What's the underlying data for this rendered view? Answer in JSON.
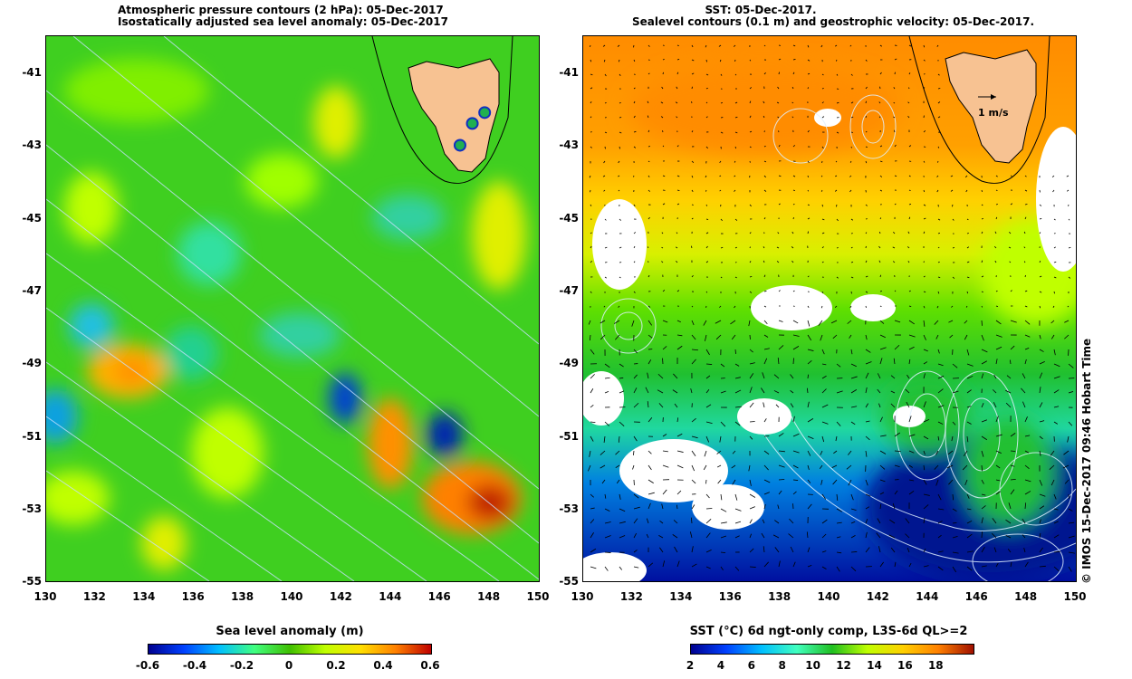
{
  "left_panel": {
    "title_line1": "Atmospheric pressure contours (2 hPa): 05-Dec-2017",
    "title_line2": "Isostatically adjusted sea level anomaly: 05-Dec-2017",
    "colorbar_title": "Sea level anomaly (m)",
    "colorbar_ticks": [
      "-0.6",
      "-0.4",
      "-0.2",
      "0",
      "0.2",
      "0.4",
      "0.6"
    ]
  },
  "right_panel": {
    "title_line1": "SST: 05-Dec-2017.",
    "title_line2": "Sealevel contours (0.1 m) and geostrophic velocity: 05-Dec-2017.",
    "arrow_label": "1 m/s",
    "colorbar_title": "SST (°C) 6d ngt-only comp, L3S-6d QL>=2",
    "colorbar_ticks": [
      "2",
      "4",
      "6",
      "8",
      "10",
      "12",
      "14",
      "16",
      "18"
    ]
  },
  "y_ticks": [
    "-41",
    "-43",
    "-45",
    "-47",
    "-49",
    "-51",
    "-53",
    "-55"
  ],
  "x_ticks": [
    "130",
    "132",
    "134",
    "136",
    "138",
    "140",
    "142",
    "144",
    "146",
    "148",
    "150"
  ],
  "credit": "© IMOS 15-Dec-2017 09:46 Hobart Time",
  "colors": {
    "land": "#f7c292",
    "ssl_colormap": [
      "#00008f",
      "#0040ff",
      "#00bfff",
      "#40ff80",
      "#3fbf00",
      "#c0ff00",
      "#ffdf00",
      "#ff8000",
      "#bf0000"
    ],
    "sst_colormap": [
      "#00008f",
      "#0040ff",
      "#00bfff",
      "#40ffbf",
      "#20bf20",
      "#c0ff00",
      "#ffd000",
      "#ff8000",
      "#a01000"
    ]
  },
  "map_data": {
    "lon_range": [
      130,
      150
    ],
    "lat_range": [
      -55,
      -40
    ],
    "tide_gauges": [
      {
        "lon": 146.8,
        "lat": -43.5
      },
      {
        "lon": 147.3,
        "lat": -42.9
      },
      {
        "lon": 147.8,
        "lat": -42.6
      }
    ]
  }
}
